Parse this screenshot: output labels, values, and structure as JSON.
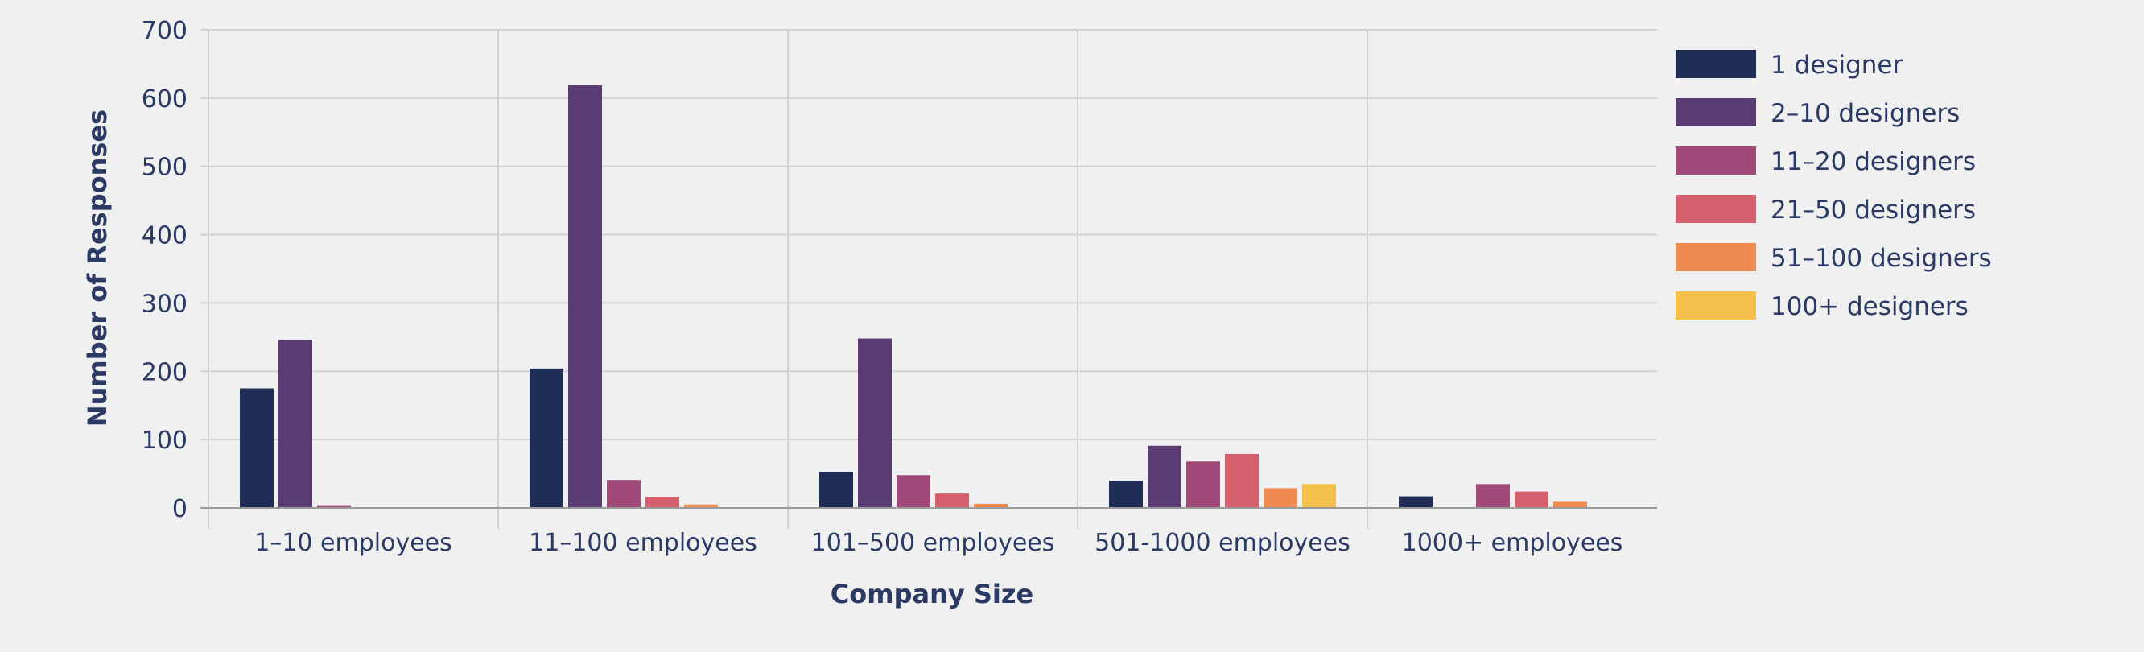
{
  "chart_data": {
    "type": "bar",
    "xlabel": "Company Size",
    "ylabel": "Number of Responses",
    "ylim": [
      0,
      700
    ],
    "yticks": [
      0,
      100,
      200,
      300,
      400,
      500,
      600,
      700
    ],
    "grid": true,
    "legend_position": "right",
    "categories": [
      "1–10 employees",
      "11–100 employees",
      "101–500 employees",
      "501-1000 employees",
      "1000+ employees"
    ],
    "series": [
      {
        "name": "1 designer",
        "color": "#1f2d55",
        "values": [
          175,
          204,
          53,
          40,
          17
        ]
      },
      {
        "name": "2–10 designers",
        "color": "#5a3c73",
        "values": [
          246,
          619,
          248,
          91,
          0
        ]
      },
      {
        "name": "11–20 designers",
        "color": "#a04a79",
        "values": [
          4,
          41,
          48,
          68,
          35
        ]
      },
      {
        "name": "21–50 designers",
        "color": "#d55f6c",
        "values": [
          0,
          16,
          21,
          79,
          24
        ]
      },
      {
        "name": "51–100 designers",
        "color": "#ef8a50",
        "values": [
          0,
          5,
          6,
          29,
          9
        ]
      },
      {
        "name": "100+ designers",
        "color": "#f6c14a",
        "values": [
          1,
          0,
          0,
          35,
          0
        ]
      }
    ]
  }
}
